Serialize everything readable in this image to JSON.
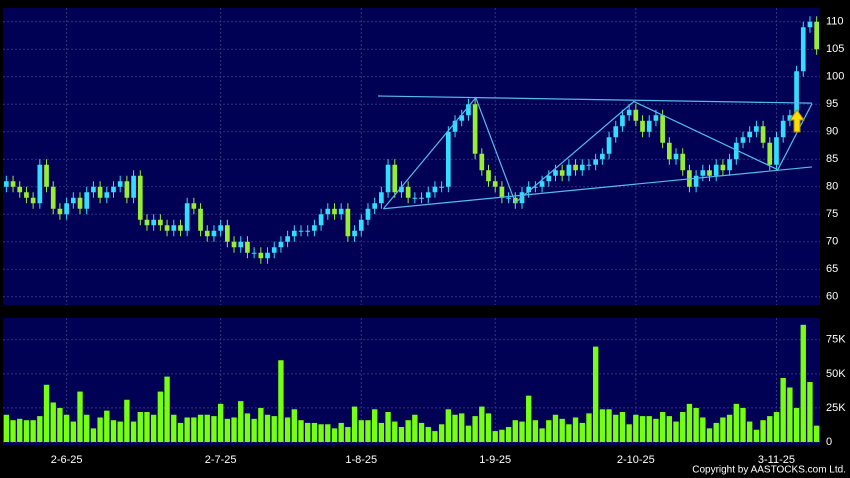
{
  "chart_data": [
    {
      "type": "candlestick",
      "up_color": "#33ddff",
      "down_color": "#99ee33",
      "trendline_color": "#55bbee",
      "xlim": [
        -0.5,
        121.5
      ],
      "ylim": [
        58.5,
        112.5
      ],
      "yticks": [
        60,
        65,
        70,
        75,
        80,
        85,
        90,
        95,
        100,
        105,
        110
      ],
      "grid": true,
      "open": [
        80,
        81,
        80,
        79,
        78,
        77,
        84,
        80,
        76,
        75,
        77,
        78,
        76,
        79,
        80,
        78,
        79,
        80,
        81,
        78,
        82,
        74,
        73,
        74,
        73,
        72,
        73,
        72,
        77,
        76,
        72,
        71,
        72,
        73,
        70,
        69,
        70,
        68,
        68,
        67,
        68,
        69,
        70,
        71,
        72,
        72,
        72,
        73,
        75,
        76,
        75,
        76,
        71,
        72,
        74,
        76,
        77,
        79,
        84,
        79,
        80,
        78,
        78,
        78,
        79,
        80,
        80,
        90,
        92,
        93,
        95,
        86,
        83,
        81,
        80,
        78,
        78,
        77,
        79,
        80,
        80,
        81,
        82,
        83,
        82,
        84,
        83,
        84,
        84,
        85,
        86,
        89,
        91,
        93,
        94,
        92,
        90,
        92,
        93,
        88,
        85,
        86,
        83,
        80,
        82,
        83,
        82,
        84,
        83,
        85,
        88,
        89,
        90,
        91,
        88,
        84,
        89,
        92,
        93,
        101,
        109,
        110
      ],
      "close": [
        81,
        80,
        79,
        78,
        77,
        84,
        80,
        76,
        75,
        77,
        78,
        76,
        79,
        80,
        78,
        79,
        80,
        81,
        78,
        82,
        74,
        73,
        74,
        73,
        72,
        73,
        72,
        77,
        76,
        72,
        71,
        72,
        73,
        70,
        69,
        70,
        68,
        68,
        67,
        68,
        69,
        70,
        71,
        72,
        72,
        72,
        73,
        75,
        76,
        75,
        76,
        71,
        72,
        74,
        76,
        77,
        79,
        84,
        79,
        80,
        78,
        78,
        78,
        79,
        80,
        80,
        90,
        92,
        93,
        95,
        86,
        83,
        81,
        80,
        78,
        78,
        77,
        79,
        80,
        80,
        81,
        82,
        83,
        82,
        84,
        83,
        84,
        84,
        85,
        86,
        89,
        91,
        93,
        94,
        92,
        90,
        92,
        93,
        88,
        85,
        86,
        83,
        80,
        82,
        83,
        82,
        84,
        83,
        85,
        88,
        89,
        90,
        91,
        88,
        84,
        89,
        92,
        93,
        101,
        109,
        110,
        105
      ],
      "high": [
        82,
        82,
        81,
        80,
        79,
        85,
        85,
        81,
        77,
        78,
        79,
        79,
        80,
        81,
        81,
        80,
        81,
        82,
        82,
        83,
        83,
        75,
        75,
        75,
        74,
        74,
        74,
        78,
        78,
        77,
        73,
        73,
        74,
        74,
        71,
        71,
        71,
        69,
        69,
        69,
        70,
        71,
        72,
        73,
        73,
        73,
        74,
        76,
        77,
        77,
        77,
        77,
        73,
        75,
        77,
        78,
        80,
        85,
        85,
        81,
        81,
        79,
        79,
        80,
        81,
        81,
        91,
        93,
        94,
        96,
        96,
        87,
        84,
        82,
        81,
        79,
        79,
        80,
        81,
        81,
        82,
        83,
        84,
        84,
        85,
        85,
        85,
        85,
        86,
        87,
        90,
        92,
        94,
        95,
        95,
        93,
        93,
        94,
        94,
        89,
        87,
        87,
        84,
        83,
        84,
        84,
        85,
        85,
        86,
        89,
        90,
        91,
        92,
        92,
        89,
        90,
        93,
        94,
        102,
        110,
        111,
        111
      ],
      "low": [
        79,
        79,
        78,
        77,
        76,
        76,
        79,
        75,
        74,
        74,
        76,
        75,
        75,
        78,
        77,
        77,
        78,
        79,
        77,
        77,
        73,
        72,
        72,
        72,
        71,
        71,
        71,
        71,
        75,
        71,
        70,
        70,
        71,
        69,
        68,
        68,
        67,
        67,
        66,
        66,
        67,
        68,
        69,
        70,
        71,
        71,
        71,
        72,
        74,
        74,
        74,
        70,
        70,
        71,
        73,
        75,
        76,
        78,
        78,
        78,
        77,
        77,
        77,
        77,
        78,
        79,
        79,
        89,
        91,
        92,
        85,
        82,
        80,
        79,
        77,
        77,
        76,
        76,
        78,
        79,
        79,
        80,
        81,
        81,
        81,
        82,
        82,
        83,
        83,
        84,
        85,
        88,
        90,
        92,
        91,
        89,
        89,
        91,
        87,
        84,
        84,
        82,
        79,
        79,
        81,
        81,
        81,
        82,
        82,
        84,
        87,
        88,
        89,
        87,
        83,
        83,
        88,
        91,
        92,
        100,
        108,
        104
      ],
      "trendlines": [
        {
          "x": [
            55.5,
            120.3
          ],
          "y": [
            96.5,
            95.2
          ]
        },
        {
          "x": [
            56.3,
            120.3
          ],
          "y": [
            76,
            83.6
          ]
        },
        {
          "x": [
            56.3,
            70.1,
            76,
            93.7,
            115.2,
            120.3
          ],
          "y": [
            76,
            96.2,
            77.1,
            95.5,
            83.1,
            95.1
          ]
        }
      ]
    },
    {
      "type": "bar",
      "color": "#77ff11",
      "xlim": [
        -0.5,
        121.5
      ],
      "ylim": [
        0,
        91000
      ],
      "yticks": [
        0,
        {
          "value": 25000,
          "label": "25K"
        },
        {
          "value": 50000,
          "label": "50K"
        },
        {
          "value": 75000,
          "label": "75K"
        }
      ],
      "grid": true,
      "xticks": [
        {
          "value": 9,
          "label": "2-6-25"
        },
        {
          "value": 32,
          "label": "2-7-25"
        },
        {
          "value": 53,
          "label": "1-8-25"
        },
        {
          "value": 73,
          "label": "1-9-25"
        },
        {
          "value": 94,
          "label": "2-10-25"
        },
        {
          "value": 115,
          "label": "3-11-25"
        }
      ],
      "values": [
        20000,
        16000,
        17000,
        16000,
        16000,
        19000,
        42000,
        29000,
        25000,
        20000,
        15000,
        37000,
        20000,
        10000,
        18000,
        23000,
        16000,
        15000,
        31000,
        15000,
        22000,
        22000,
        20000,
        37000,
        48000,
        20000,
        14000,
        18000,
        18000,
        20000,
        20000,
        19000,
        28000,
        17000,
        18000,
        30000,
        21000,
        17000,
        25000,
        20000,
        19000,
        60000,
        18000,
        24000,
        16000,
        14000,
        14000,
        13000,
        13000,
        10000,
        14000,
        11000,
        26000,
        16000,
        16000,
        24000,
        14000,
        22000,
        15000,
        11000,
        16000,
        20000,
        14000,
        11000,
        8000,
        13000,
        24000,
        20000,
        21000,
        12000,
        19000,
        26000,
        21000,
        8000,
        9000,
        11000,
        16000,
        15000,
        34000,
        16000,
        10000,
        16000,
        20000,
        17000,
        13000,
        18000,
        14000,
        21000,
        70000,
        24000,
        24000,
        20000,
        22000,
        13000,
        20000,
        19000,
        19000,
        17000,
        22000,
        19000,
        15000,
        22000,
        28000,
        25000,
        18000,
        10000,
        14000,
        18000,
        20000,
        28000,
        25000,
        15000,
        9000,
        16000,
        19000,
        22000,
        47000,
        40000,
        25000,
        86000,
        44000,
        12000
      ]
    }
  ],
  "copyright": "Copyright by AASTOCKS.com Ltd."
}
